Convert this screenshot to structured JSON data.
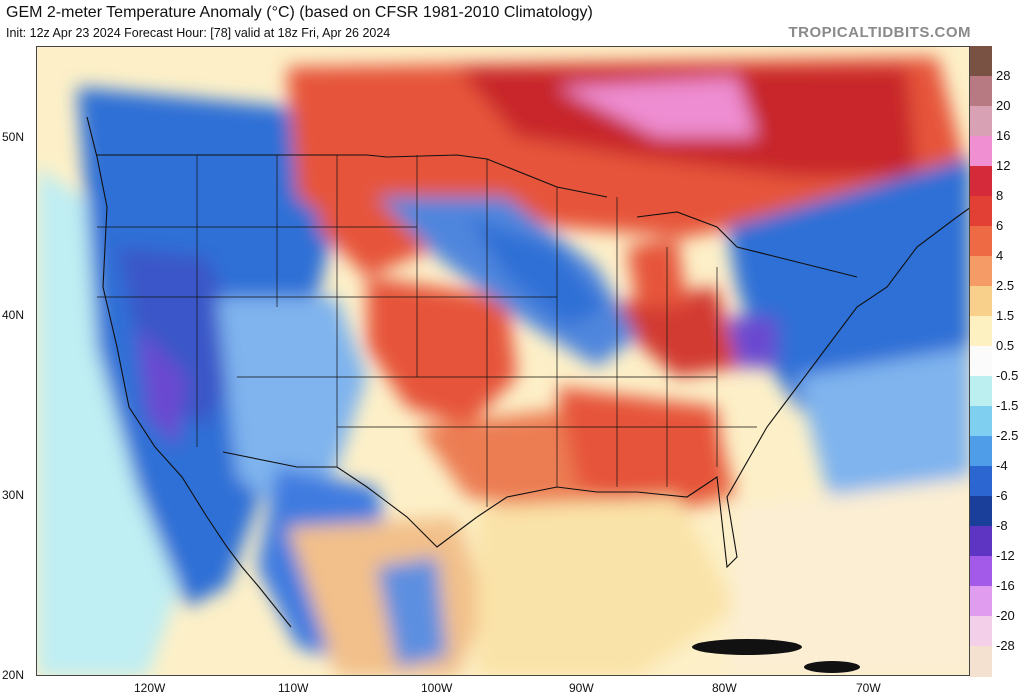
{
  "header": {
    "title": "GEM 2-meter Temperature Anomaly (°C) (based on CFSR 1981-2010 Climatology)",
    "subtitle": "Init: 12z Apr 23 2024   Forecast Hour: [78]   valid at 18z Fri, Apr 26 2024",
    "brand": "TROPICALTIDBITS.COM"
  },
  "map": {
    "lat_labels": [
      "50N",
      "40N",
      "30N",
      "20N"
    ],
    "lon_labels": [
      "120W",
      "110W",
      "100W",
      "90W",
      "80W",
      "70W"
    ]
  },
  "colorbar": {
    "labels": [
      "28",
      "20",
      "16",
      "12",
      "8",
      "6",
      "4",
      "2.5",
      "1.5",
      "0.5",
      "-0.5",
      "-1.5",
      "-2.5",
      "-4",
      "-6",
      "-8",
      "-12",
      "-16",
      "-20",
      "-28"
    ],
    "colors": [
      "#7a5244",
      "#b87a82",
      "#d9a2b4",
      "#f08fd2",
      "#d52a39",
      "#e34035",
      "#ee6a45",
      "#f59c66",
      "#f9cf8c",
      "#fdf1c2",
      "#fbfbfb",
      "#bcf0f0",
      "#7fcff0",
      "#4f9ce8",
      "#2c66d1",
      "#1a3f9a",
      "#5d35c2",
      "#a35ae8",
      "#e09df0",
      "#f4cfe9",
      "#f5e1d0"
    ]
  },
  "colors": {
    "ocean": "#fdf0c8",
    "warm_dark": "#c8272c",
    "warm": "#e6553a",
    "warm_light": "#f2a26c",
    "pink": "#ee8dd1",
    "cold": "#2f6fd6",
    "cold_light": "#7fb4ee",
    "cold_dark": "#22368f",
    "purple": "#6b4ad0",
    "cyan": "#9fe6ef",
    "line": "#111111"
  }
}
